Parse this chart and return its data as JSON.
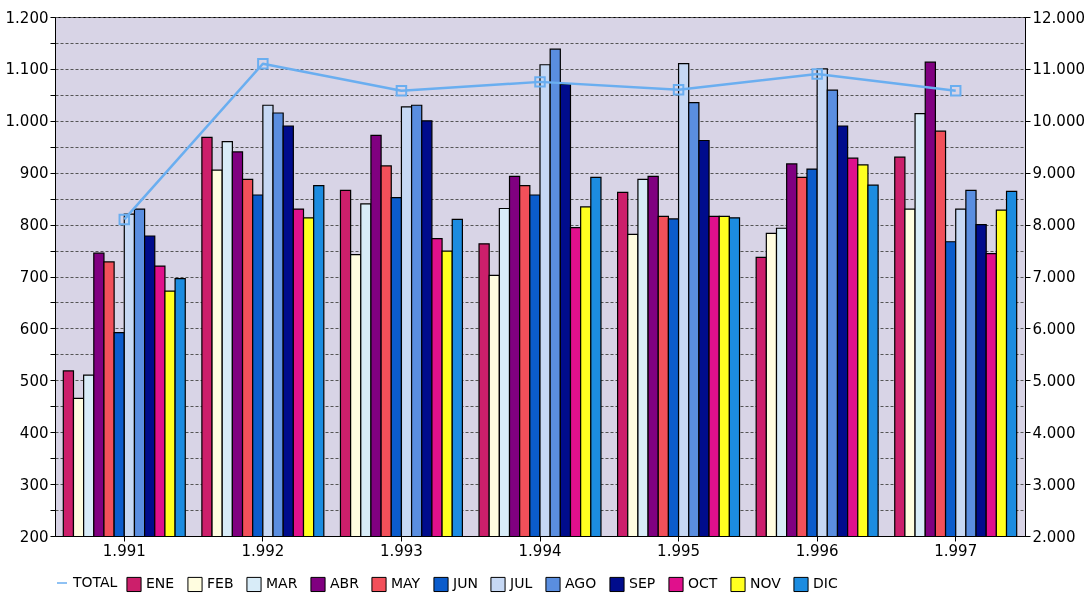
{
  "chart_data": {
    "type": "bar",
    "categories": [
      "1.991",
      "1.992",
      "1.993",
      "1.994",
      "1.995",
      "1.996",
      "1.997"
    ],
    "series": [
      {
        "name": "ENE",
        "color": "#cc1f6b",
        "values": [
          518,
          968,
          866,
          763,
          862,
          737,
          930
        ]
      },
      {
        "name": "FEB",
        "color": "#fffde0",
        "values": [
          465,
          905,
          742,
          702,
          781,
          783,
          830
        ]
      },
      {
        "name": "MAR",
        "color": "#d8ecf8",
        "values": [
          510,
          960,
          840,
          831,
          887,
          793,
          1014
        ]
      },
      {
        "name": "ABR",
        "color": "#800080",
        "values": [
          745,
          940,
          972,
          893,
          893,
          917,
          1113
        ]
      },
      {
        "name": "MAY",
        "color": "#f2505a",
        "values": [
          728,
          887,
          913,
          875,
          816,
          891,
          980
        ]
      },
      {
        "name": "JUN",
        "color": "#0b5ccc",
        "values": [
          592,
          857,
          852,
          857,
          811,
          907,
          767
        ]
      },
      {
        "name": "JUL",
        "color": "#c6d8f4",
        "values": [
          820,
          1030,
          1027,
          1108,
          1110,
          1100,
          830
        ]
      },
      {
        "name": "AGO",
        "color": "#5a8ee0",
        "values": [
          830,
          1015,
          1030,
          1138,
          1035,
          1059,
          866
        ]
      },
      {
        "name": "SEP",
        "color": "#000c8c",
        "values": [
          778,
          990,
          1000,
          1070,
          962,
          990,
          800
        ]
      },
      {
        "name": "OCT",
        "color": "#e0108c",
        "values": [
          720,
          830,
          773,
          794,
          816,
          928,
          744
        ]
      },
      {
        "name": "NOV",
        "color": "#ffff20",
        "values": [
          672,
          813,
          749,
          834,
          816,
          915,
          828
        ]
      },
      {
        "name": "DIC",
        "color": "#1c8ce0",
        "values": [
          696,
          875,
          810,
          891,
          813,
          876,
          864
        ]
      },
      {
        "name": "TOTAL",
        "color": "#6aaef0",
        "type": "line",
        "axis": "y2",
        "marker": "square",
        "values": [
          8100,
          11100,
          10580,
          10750,
          10600,
          10900,
          10580
        ]
      }
    ],
    "ylim": [
      200,
      1200
    ],
    "yticks": [
      {
        "value": 200,
        "label": "200"
      },
      {
        "value": 250,
        "label": null
      },
      {
        "value": 300,
        "label": "300"
      },
      {
        "value": 350,
        "label": null
      },
      {
        "value": 400,
        "label": "400"
      },
      {
        "value": 450,
        "label": null
      },
      {
        "value": 500,
        "label": "500"
      },
      {
        "value": 550,
        "label": null
      },
      {
        "value": 600,
        "label": "600"
      },
      {
        "value": 650,
        "label": null
      },
      {
        "value": 700,
        "label": "700"
      },
      {
        "value": 750,
        "label": null
      },
      {
        "value": 800,
        "label": "800"
      },
      {
        "value": 850,
        "label": null
      },
      {
        "value": 900,
        "label": "900"
      },
      {
        "value": 950,
        "label": null
      },
      {
        "value": 1000,
        "label": "1.000"
      },
      {
        "value": 1050,
        "label": null
      },
      {
        "value": 1100,
        "label": "1.100"
      },
      {
        "value": 1150,
        "label": null
      },
      {
        "value": 1200,
        "label": "1.200"
      }
    ],
    "y2lim": [
      2000,
      12000
    ],
    "y2ticks": [
      {
        "value": 2000,
        "label": "2.000"
      },
      {
        "value": 3000,
        "label": "3.000"
      },
      {
        "value": 4000,
        "label": "4.000"
      },
      {
        "value": 5000,
        "label": "5.000"
      },
      {
        "value": 6000,
        "label": "6.000"
      },
      {
        "value": 7000,
        "label": "7.000"
      },
      {
        "value": 8000,
        "label": "8.000"
      },
      {
        "value": 9000,
        "label": "9.000"
      },
      {
        "value": 10000,
        "label": "10.000"
      },
      {
        "value": 11000,
        "label": "11.000"
      },
      {
        "value": 12000,
        "label": "12.000"
      }
    ],
    "grid": "y",
    "legend": "bottom"
  }
}
